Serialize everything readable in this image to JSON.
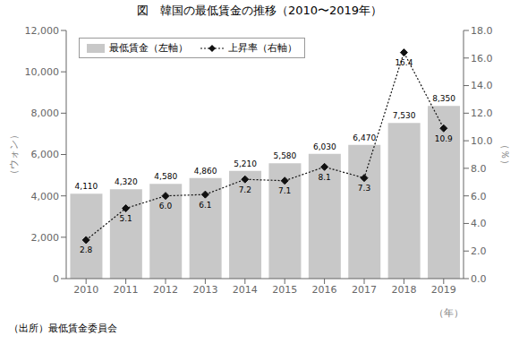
{
  "chart_data": {
    "type": "bar",
    "title": "図　韓国の最低賃金の推移（2010〜2019年）",
    "categories": [
      "2010",
      "2011",
      "2012",
      "2013",
      "2014",
      "2015",
      "2016",
      "2017",
      "2018",
      "2019"
    ],
    "series": [
      {
        "name": "最低賃金（左軸）",
        "type": "bar",
        "color": "#c8c8c8",
        "values": [
          4110,
          4320,
          4580,
          4860,
          5210,
          5580,
          6030,
          6470,
          7530,
          8350
        ],
        "value_labels": [
          "4,110",
          "4,320",
          "4,580",
          "4,860",
          "5,210",
          "5,580",
          "6,030",
          "6,470",
          "7,530",
          "8,350"
        ]
      },
      {
        "name": "上昇率（右軸）",
        "type": "line",
        "axis": "y2",
        "color": "#111111",
        "marker": "diamond",
        "line_style": "dotted",
        "values": [
          2.8,
          5.1,
          6.0,
          6.1,
          7.2,
          7.1,
          8.1,
          7.3,
          16.4,
          10.9
        ],
        "value_labels": [
          "2.8",
          "5.1",
          "6.0",
          "6.1",
          "7.2",
          "7.1",
          "8.1",
          "7.3",
          "16.4",
          "10.9"
        ]
      }
    ],
    "ylabel": "（ウォン）",
    "y2label": "（％）",
    "xlabel": "（年）",
    "ylim": [
      0,
      12000
    ],
    "yticks": [
      0,
      {
        "value": 2000,
        "label": "2,000"
      },
      {
        "value": 4000,
        "label": "4,000"
      },
      {
        "value": 6000,
        "label": "6,000"
      },
      {
        "value": 8000,
        "label": "8,000"
      },
      {
        "value": 10000,
        "label": "10,000"
      },
      {
        "value": 12000,
        "label": "12,000"
      }
    ],
    "y2lim": [
      0,
      18.0
    ],
    "y2ticks": [
      {
        "value": 0,
        "label": "0.0"
      },
      {
        "value": 2,
        "label": "2.0"
      },
      {
        "value": 4,
        "label": "4.0"
      },
      {
        "value": 6,
        "label": "6.0"
      },
      {
        "value": 8,
        "label": "8.0"
      },
      {
        "value": 10,
        "label": "10.0"
      },
      {
        "value": 12,
        "label": "12.0"
      },
      {
        "value": 14,
        "label": "14.0"
      },
      {
        "value": 16,
        "label": "16.0"
      },
      {
        "value": 18,
        "label": "18.0"
      }
    ],
    "grid": false,
    "legend": "upper left",
    "data_labels": true,
    "annotations": [
      "（出所）最低賃金委員会"
    ]
  }
}
